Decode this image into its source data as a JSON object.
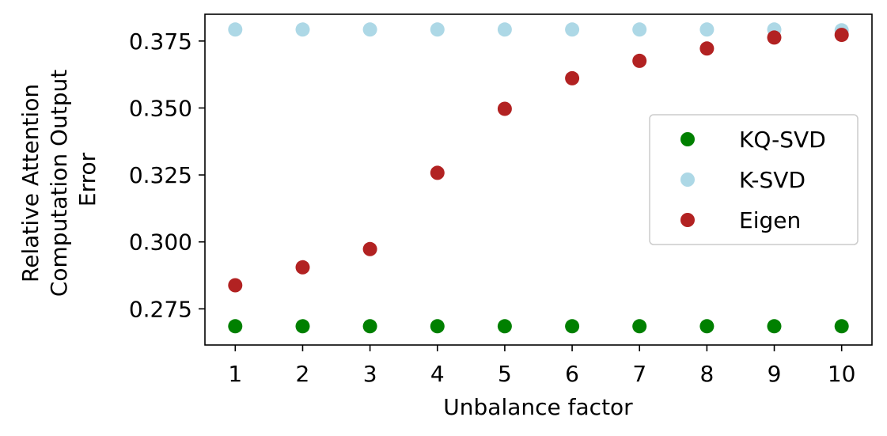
{
  "chart_data": {
    "type": "scatter",
    "x": [
      1,
      2,
      3,
      4,
      5,
      6,
      7,
      8,
      9,
      10
    ],
    "xlabel": "Unbalance factor",
    "ylabel_lines": [
      "Relative Attention",
      "Computation Output",
      "Error"
    ],
    "xticks": [
      "1",
      "2",
      "3",
      "4",
      "5",
      "6",
      "7",
      "8",
      "9",
      "10"
    ],
    "yticks": [
      "0.275",
      "0.300",
      "0.325",
      "0.350",
      "0.375"
    ],
    "xlim": [
      0.55,
      10.45
    ],
    "ylim": [
      0.2615,
      0.385
    ],
    "grid": false,
    "legend_position": "center-right",
    "series": [
      {
        "name": "KQ-SVD",
        "color": "#008000",
        "values": [
          0.2685,
          0.2685,
          0.2685,
          0.2685,
          0.2685,
          0.2685,
          0.2685,
          0.2685,
          0.2685,
          0.2685
        ]
      },
      {
        "name": "K-SVD",
        "color": "#add8e6",
        "values": [
          0.3793,
          0.3793,
          0.3793,
          0.3793,
          0.3793,
          0.3793,
          0.3793,
          0.3793,
          0.3793,
          0.379
        ]
      },
      {
        "name": "Eigen",
        "color": "#b22222",
        "values": [
          0.2838,
          0.2905,
          0.2973,
          0.3258,
          0.3497,
          0.3611,
          0.3676,
          0.3722,
          0.3763,
          0.3773
        ]
      }
    ]
  }
}
